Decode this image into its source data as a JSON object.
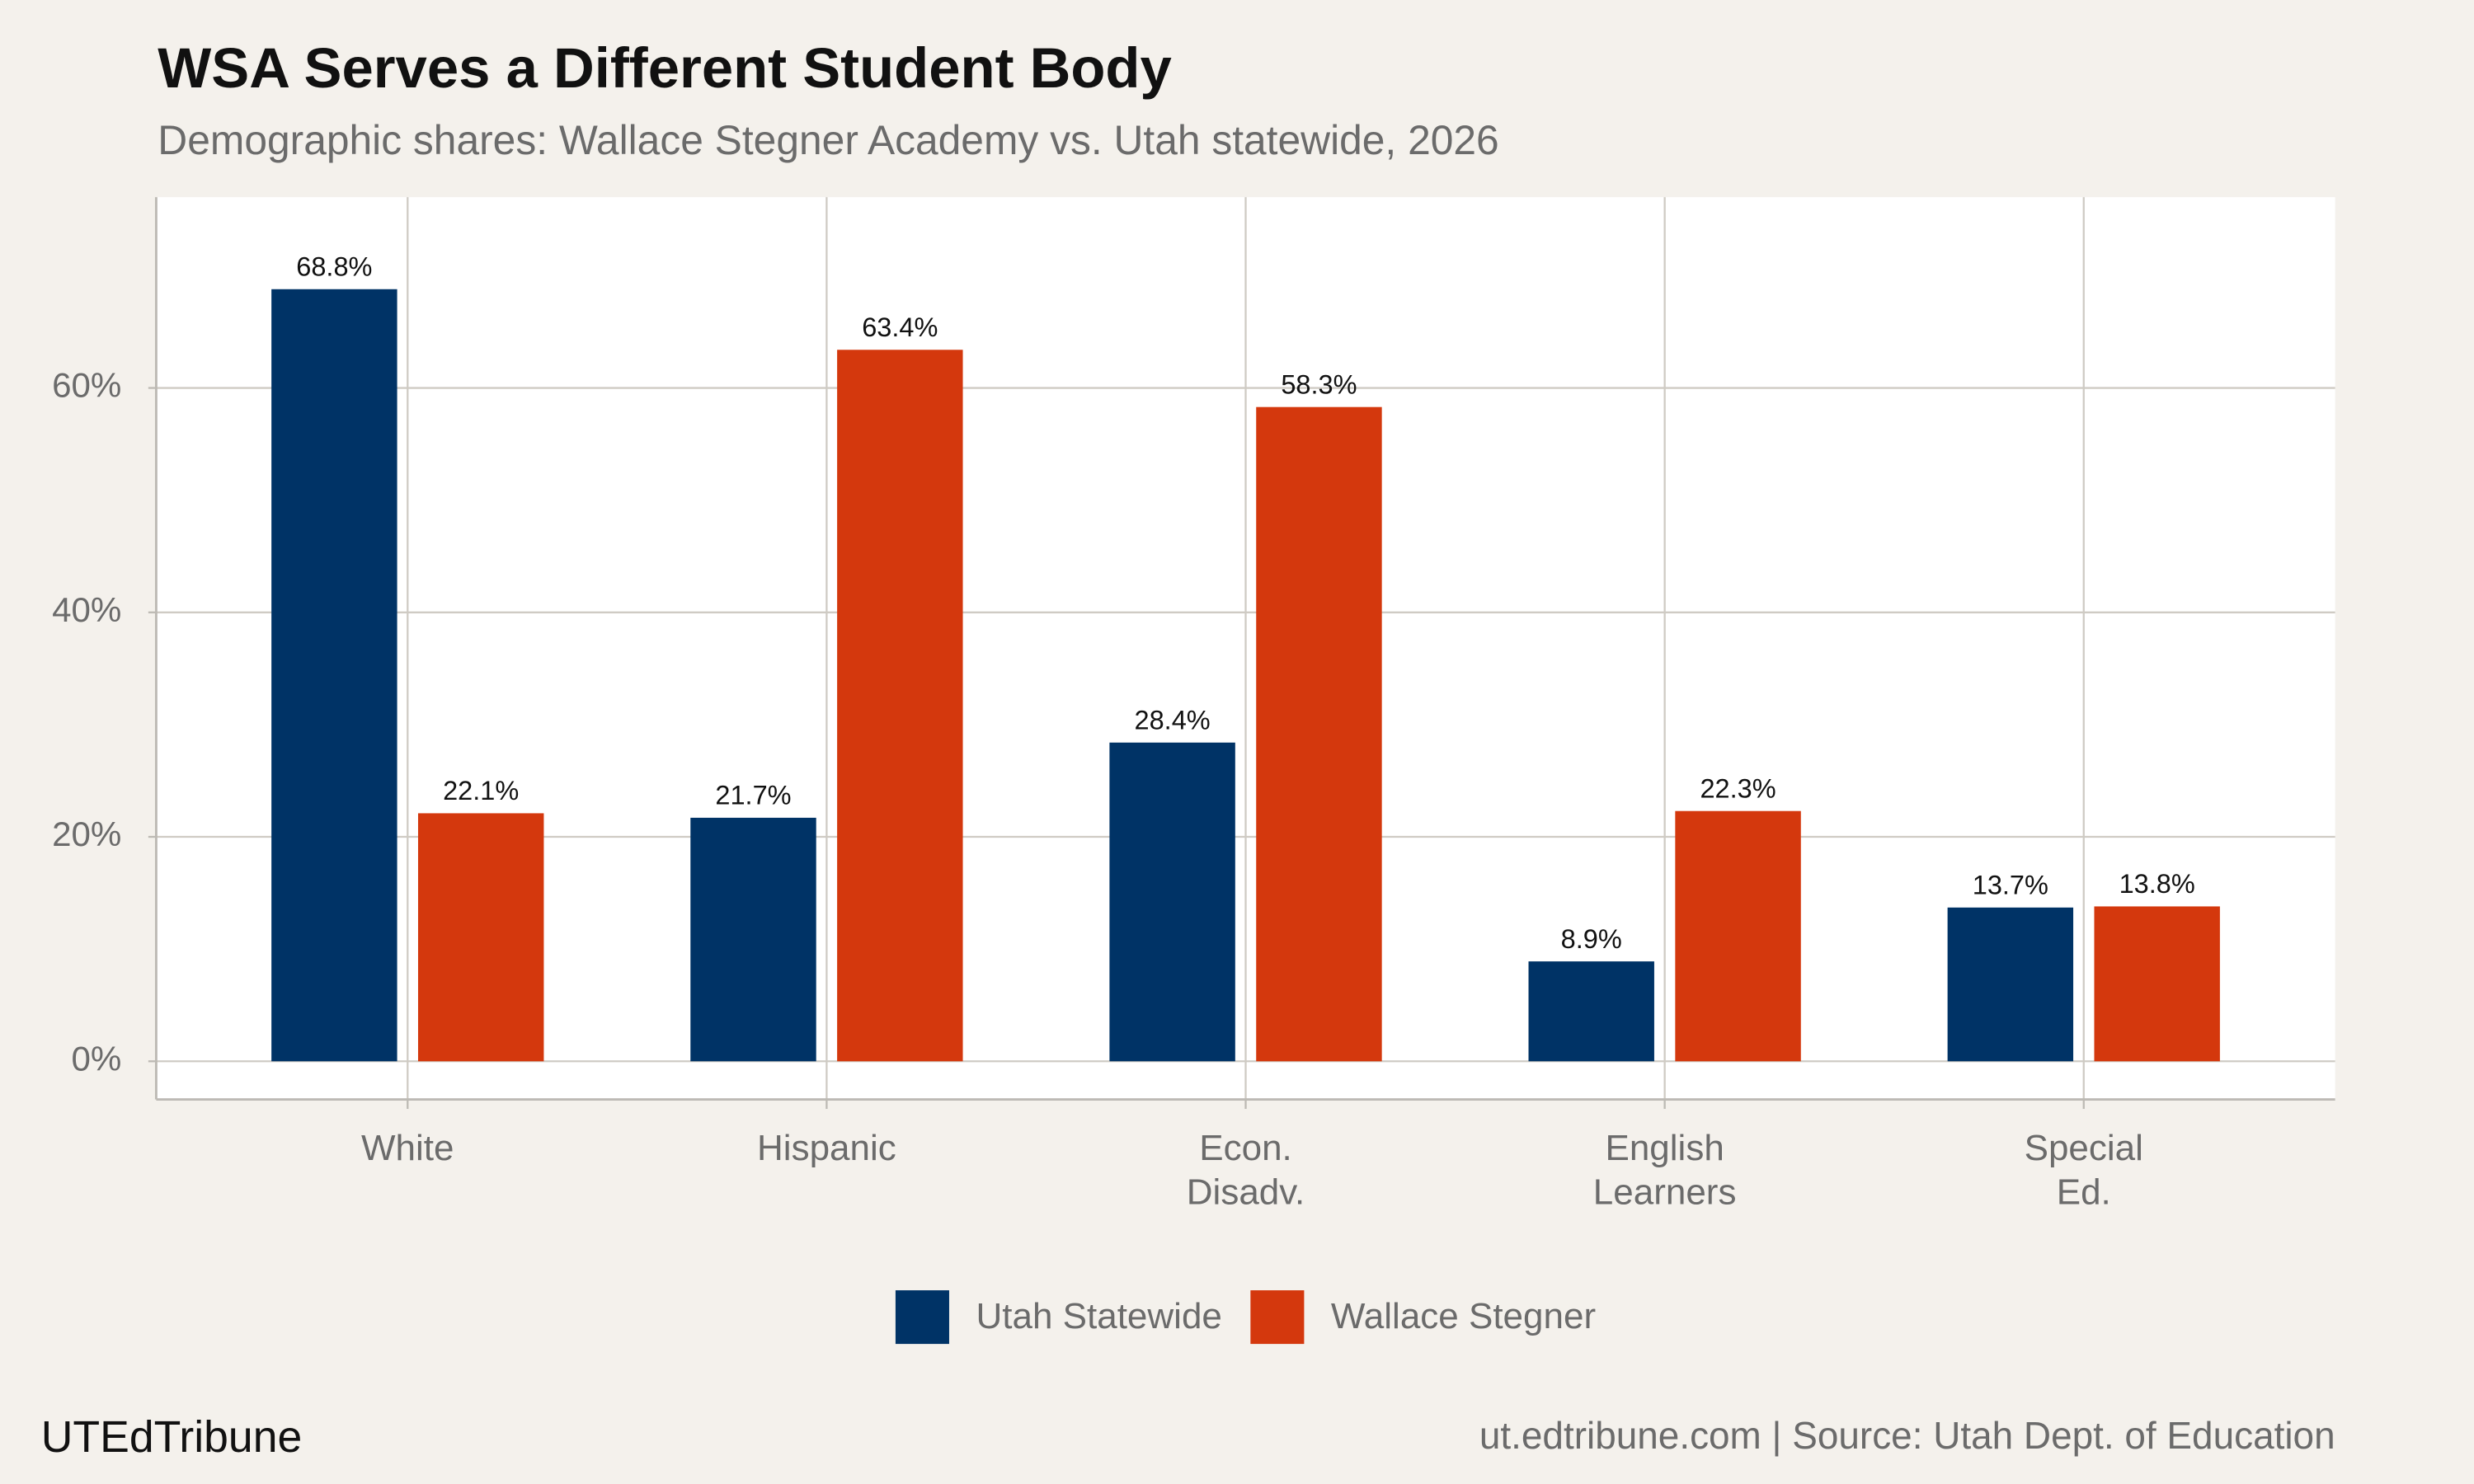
{
  "chart_data": {
    "type": "bar",
    "title": "WSA Serves a Different Student Body",
    "subtitle": "Demographic shares: Wallace Stegner Academy vs. Utah statewide, 2026",
    "categories": [
      "White",
      "Hispanic",
      "Econ.\nDisadv.",
      "English\nLearners",
      "Special\nEd."
    ],
    "series": [
      {
        "name": "Utah Statewide",
        "color": "#003366",
        "values": [
          68.8,
          21.7,
          28.4,
          8.9,
          13.7
        ],
        "value_labels": [
          "68.8%",
          "21.7%",
          "28.4%",
          "8.9%",
          "13.7%"
        ]
      },
      {
        "name": "Wallace Stegner",
        "color": "#d4380d",
        "values": [
          22.1,
          63.4,
          58.3,
          22.3,
          13.8
        ],
        "value_labels": [
          "22.1%",
          "63.4%",
          "58.3%",
          "22.3%",
          "13.8%"
        ]
      }
    ],
    "ylim": [
      -3.4,
      77
    ],
    "yticks": [
      {
        "value": 0,
        "label": "0%"
      },
      {
        "value": 20,
        "label": "20%"
      },
      {
        "value": 40,
        "label": "40%"
      },
      {
        "value": 60,
        "label": "60%"
      }
    ],
    "grid": true,
    "legend": "bottom",
    "caption_left": "UTEdTribune",
    "caption_right": "ut.edtribune.com | Source: Utah Dept. of Education"
  }
}
